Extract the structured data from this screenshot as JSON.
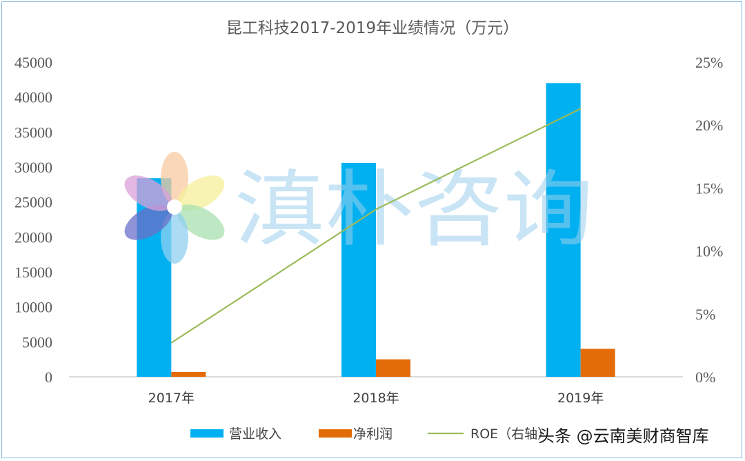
{
  "chart_data": {
    "type": "bar",
    "title": "昆工科技2017-2019年业绩情况（万元）",
    "categories": [
      "2017年",
      "2018年",
      "2019年"
    ],
    "series": [
      {
        "name": "营业收入",
        "type": "bar",
        "axis": "left",
        "color": "#00b0f0",
        "values": [
          28400,
          30600,
          42000
        ]
      },
      {
        "name": "净利润",
        "type": "bar",
        "axis": "left",
        "color": "#e36c09",
        "values": [
          700,
          2500,
          4000
        ]
      },
      {
        "name": "ROE（右轴）",
        "type": "line",
        "axis": "right",
        "color": "#9bbb59",
        "values": [
          0.027,
          0.133,
          0.213
        ]
      }
    ],
    "y_left": {
      "min": 0,
      "max": 45000,
      "ticks": [
        "0",
        "5000",
        "10000",
        "15000",
        "20000",
        "25000",
        "30000",
        "35000",
        "40000",
        "45000"
      ]
    },
    "y_right": {
      "min": 0,
      "max": 0.25,
      "ticks": [
        "0%",
        "5%",
        "10%",
        "15%",
        "20%",
        "25%"
      ]
    },
    "grid": false,
    "legend_position": "bottom"
  },
  "watermark": {
    "text": "滇朴咨询"
  },
  "credit": {
    "text": "头条 @云南美财商智库"
  }
}
